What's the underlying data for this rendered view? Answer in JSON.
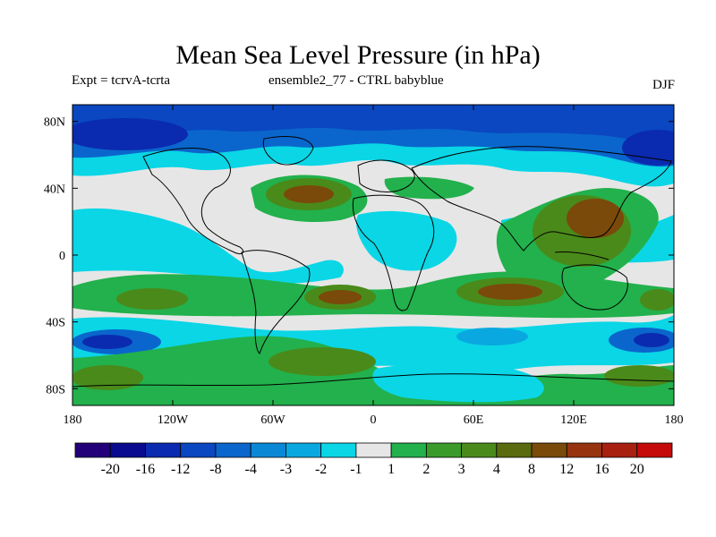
{
  "title": "Mean Sea Level Pressure (in hPa)",
  "subtitle_left": "Expt = tcrvA-tcrta",
  "subtitle_center": "ensemble2_77 - CTRL babyblue",
  "subtitle_right": "DJF",
  "lat_labels": [
    "80N",
    "40N",
    "0",
    "40S",
    "80S"
  ],
  "lon_labels": [
    "180",
    "120W",
    "60W",
    "0",
    "60E",
    "120E",
    "180"
  ],
  "colorbar": {
    "colors": [
      "#23007a",
      "#0a0a8e",
      "#0a2bb0",
      "#0a47c1",
      "#0a66cc",
      "#0a88d6",
      "#0aa8e0",
      "#0ad6e6",
      "#e6e6e6",
      "#22b14c",
      "#3a9a2a",
      "#4a8a1a",
      "#5a6a0e",
      "#7a4a0a",
      "#963410",
      "#a82010",
      "#c40a0a"
    ],
    "labels": [
      "-20",
      "-16",
      "-12",
      "-8",
      "-4",
      "-3",
      "-2",
      "-1",
      "1",
      "2",
      "3",
      "4",
      "8",
      "12",
      "16",
      "20"
    ]
  },
  "map_colors": {
    "ocean_base": "#e6e6e6",
    "cyan": "#0ad6e6",
    "light_blue": "#0aa8e0",
    "mid_blue": "#0a66cc",
    "dark_blue": "#0a47c1",
    "navy": "#0a2bb0",
    "green": "#22b14c",
    "olive": "#4a8a1a",
    "brown": "#5a6a0e",
    "dark_brown": "#7a4a0a",
    "coast": "#000000"
  }
}
